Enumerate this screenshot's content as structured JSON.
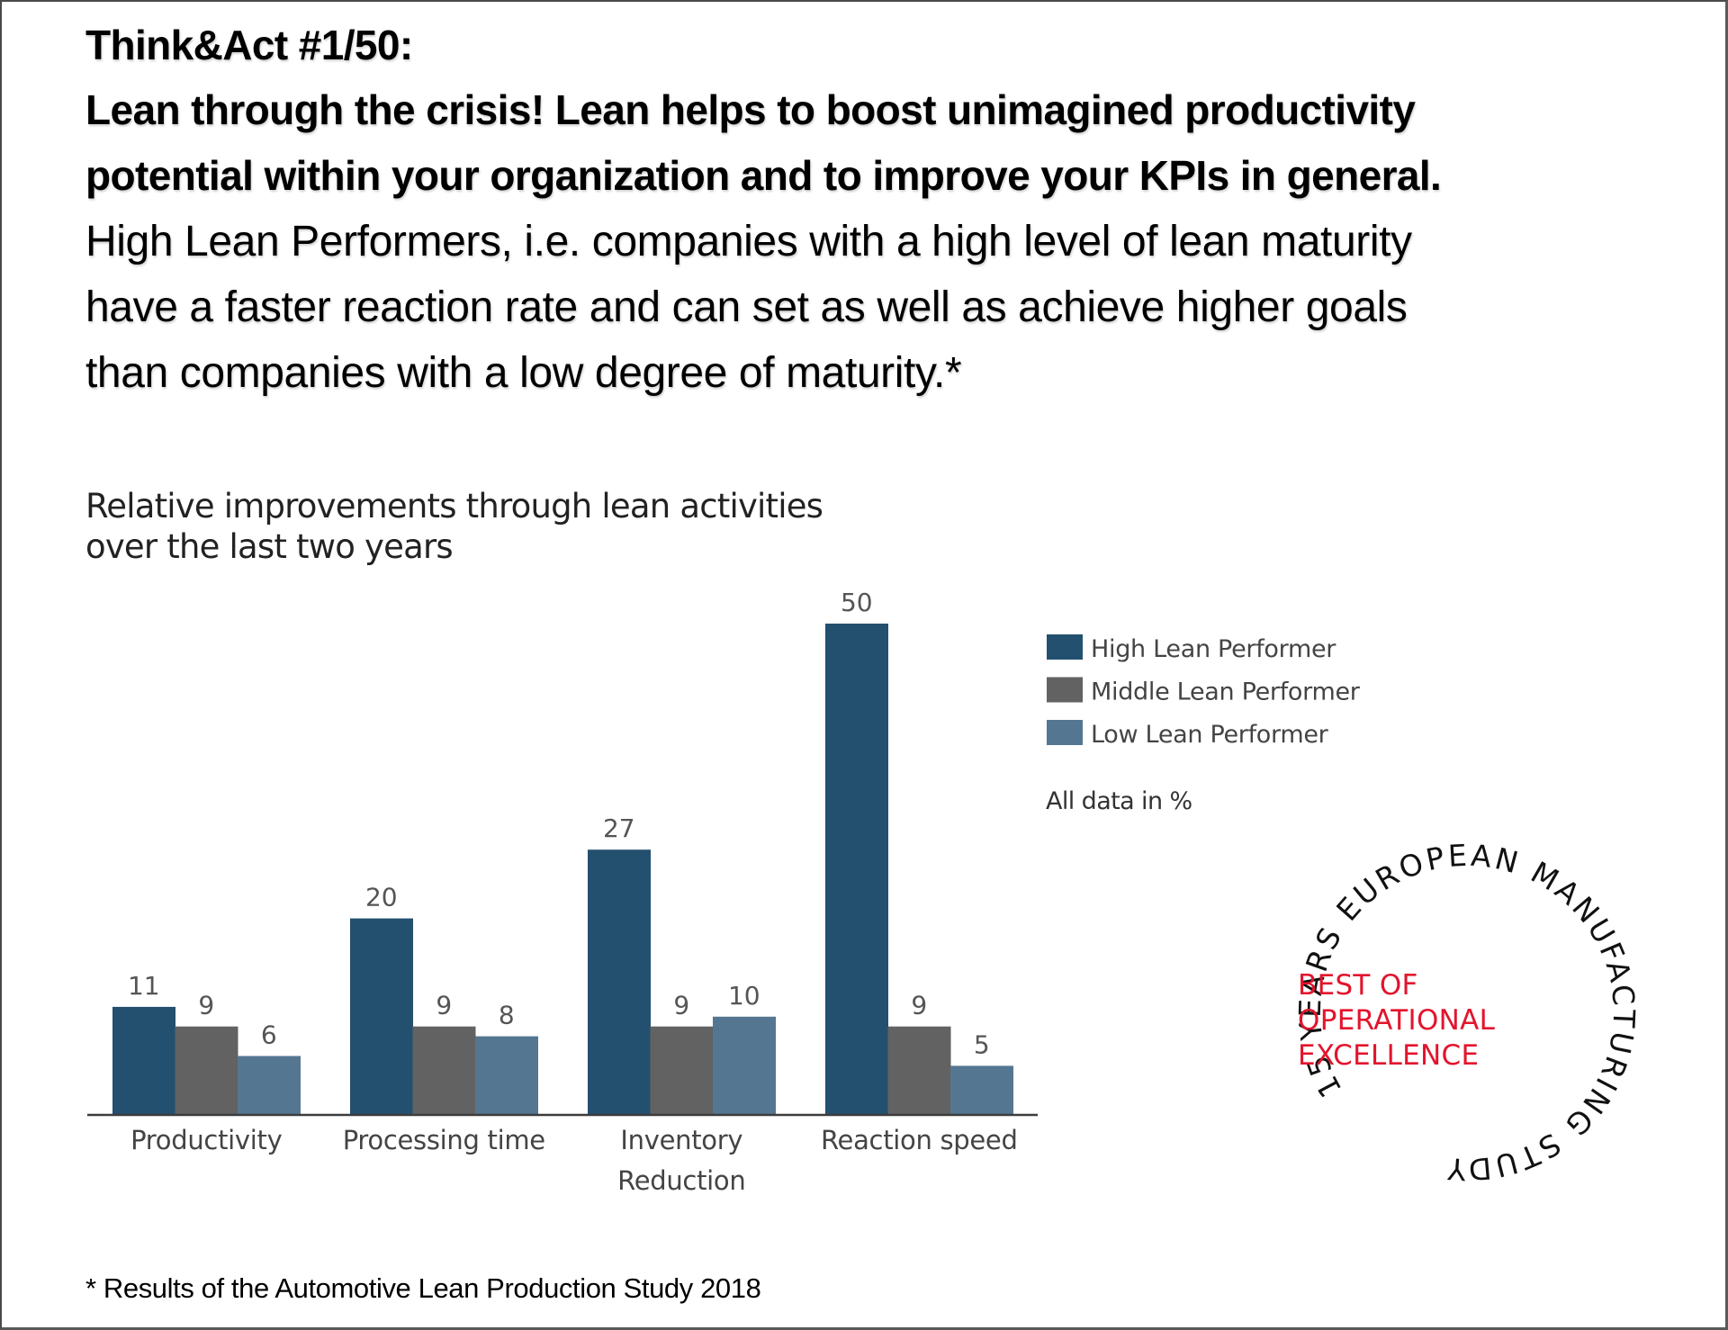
{
  "header": {
    "title": "Think&Act #1/50:",
    "subtitle_lines": [
      "Lean through the crisis! Lean helps to boost unimagined productivity",
      "potential within your organization and to improve your KPIs in general."
    ],
    "body_lines": [
      "High Lean Performers, i.e. companies with a high level of lean maturity",
      "have a faster reaction rate and can set as well as achieve higher goals",
      "than companies with a low degree of maturity.*"
    ]
  },
  "chart_data": {
    "type": "bar",
    "title": "Relative improvements through lean activities over the last two years",
    "title_lines": [
      "Relative improvements through lean activities",
      "over the last two years"
    ],
    "categories": [
      "Productivity",
      "Processing time",
      "Inventory Reduction",
      "Reaction speed"
    ],
    "category_lines": [
      [
        "Productivity"
      ],
      [
        "Processing time"
      ],
      [
        "Inventory",
        "Reduction"
      ],
      [
        "Reaction speed"
      ]
    ],
    "series": [
      {
        "name": "High Lean Performer",
        "color": "#24506f",
        "values": [
          11,
          20,
          27,
          50
        ]
      },
      {
        "name": "Middle Lean Performer",
        "color": "#626262",
        "values": [
          9,
          9,
          9,
          9
        ]
      },
      {
        "name": "Low Lean Performer",
        "color": "#557690",
        "values": [
          6,
          8,
          10,
          5
        ]
      }
    ],
    "xlabel": "",
    "ylabel": "",
    "unit_note": "All data in %",
    "ylim": [
      0,
      50
    ],
    "grid": false,
    "data_labels": true,
    "legend": "right"
  },
  "stamp": {
    "arc_text": "15 YEARS EUROPEAN MANUFACTURING STUDY",
    "center_lines": [
      "BEST OF",
      "OPERATIONAL",
      "EXCELLENCE"
    ],
    "accent_color": "#e3142d"
  },
  "footnote": "* Results of the Automotive Lean Production Study 2018"
}
